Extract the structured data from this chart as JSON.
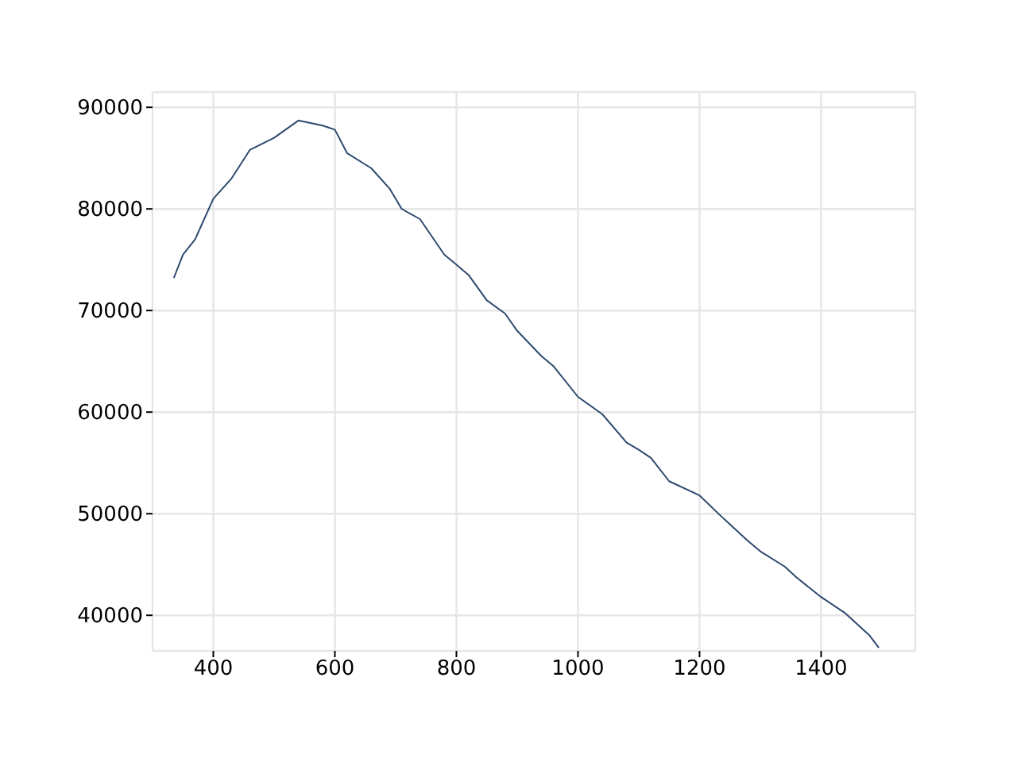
{
  "chart_data": {
    "type": "line",
    "x": [
      335,
      350,
      370,
      400,
      430,
      460,
      500,
      540,
      580,
      600,
      620,
      660,
      690,
      710,
      740,
      780,
      800,
      820,
      850,
      880,
      900,
      940,
      960,
      1000,
      1040,
      1080,
      1100,
      1120,
      1150,
      1200,
      1240,
      1280,
      1300,
      1340,
      1360,
      1400,
      1440,
      1480,
      1495
    ],
    "values": [
      73200,
      75500,
      77000,
      81000,
      83000,
      85800,
      87000,
      88700,
      88200,
      87800,
      85500,
      84000,
      82000,
      80000,
      79000,
      75500,
      74500,
      73500,
      71000,
      69700,
      68000,
      65500,
      64500,
      61500,
      59800,
      57000,
      56300,
      55500,
      53200,
      51800,
      49500,
      47300,
      46300,
      44800,
      43700,
      41800,
      40200,
      38000,
      36800
    ],
    "color": "#2e4a6e",
    "xlim": [
      300,
      1555
    ],
    "ylim": [
      36500,
      91500
    ],
    "xticks": [
      400,
      600,
      800,
      1000,
      1200,
      1400
    ],
    "yticks": [
      40000,
      50000,
      60000,
      70000,
      80000,
      90000
    ],
    "grid": true,
    "legend": false,
    "marker": "none",
    "line_style": "solid"
  }
}
